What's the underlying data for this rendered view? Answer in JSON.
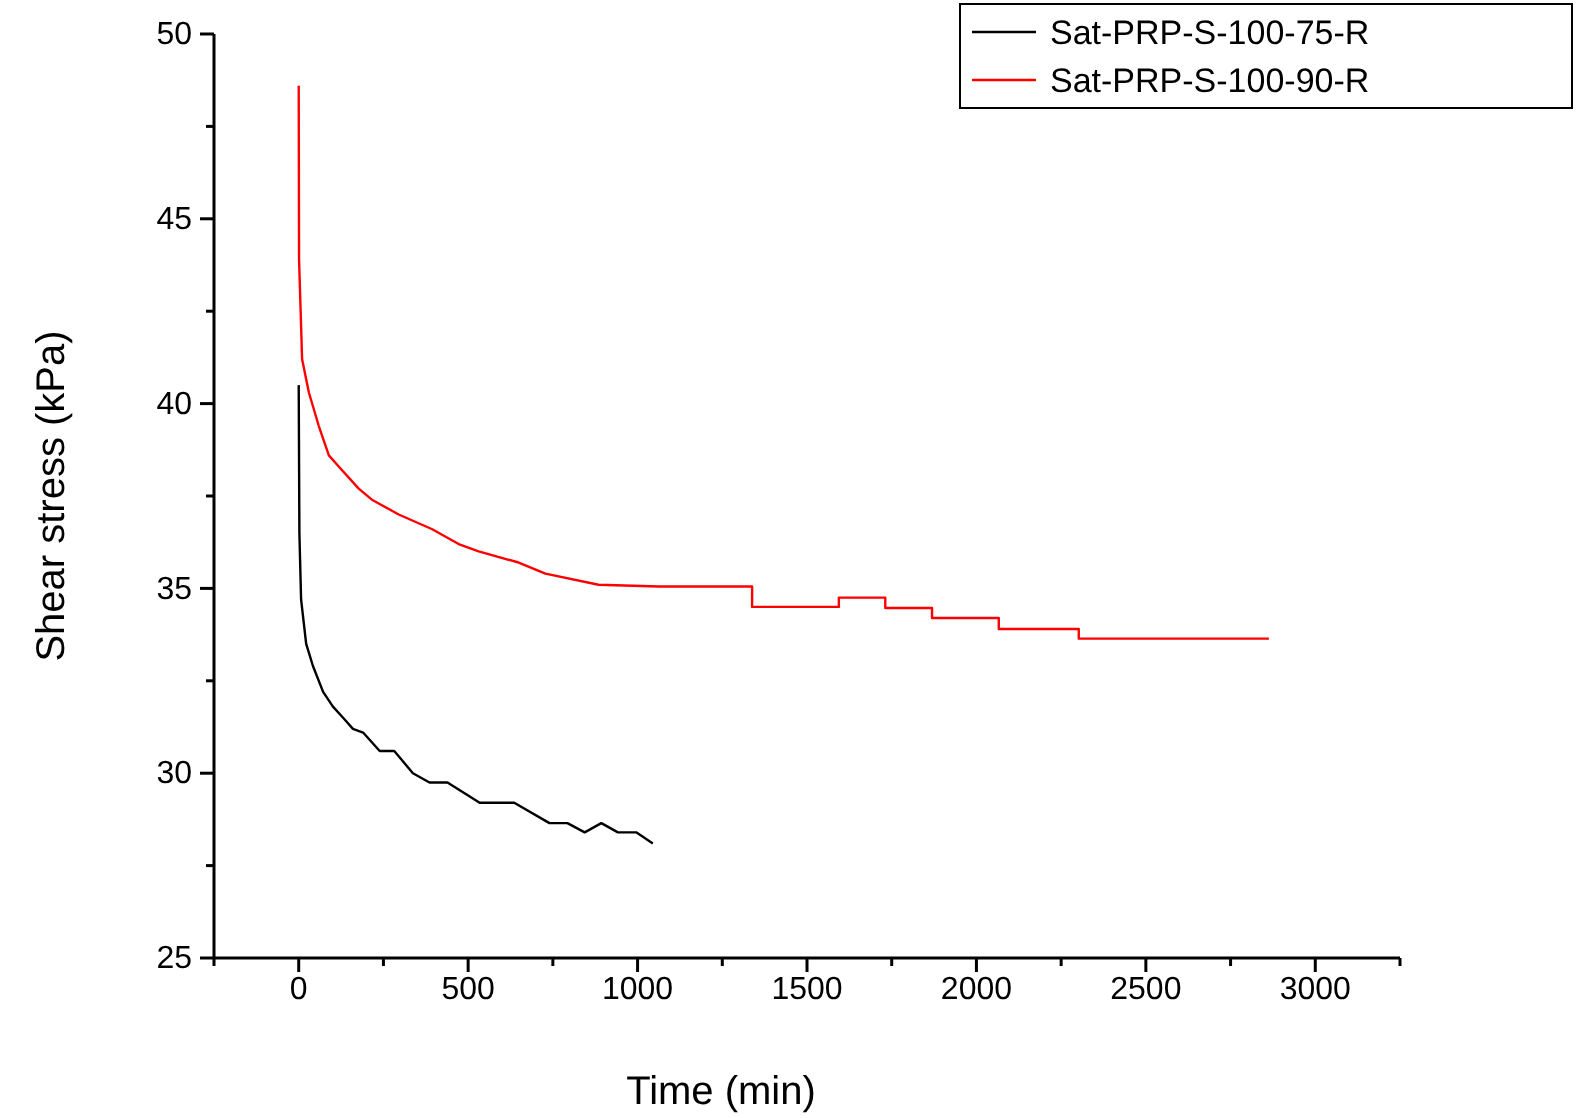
{
  "chart_data": {
    "type": "line",
    "xlabel": "Time (min)",
    "ylabel": "Shear stress (kPa)",
    "xlim": [
      -250,
      3250
    ],
    "xticks": [
      {
        "value": -250,
        "label": null
      },
      0,
      {
        "value": 250,
        "label": null
      },
      500,
      {
        "value": 750,
        "label": null
      },
      1000,
      {
        "value": 1250,
        "label": null
      },
      1500,
      {
        "value": 1750,
        "label": null
      },
      2000,
      {
        "value": 2250,
        "label": null
      },
      2500,
      {
        "value": 2750,
        "label": null
      },
      3000,
      {
        "value": 3250,
        "label": null
      }
    ],
    "ylim": [
      25,
      50
    ],
    "yticks": [
      25,
      {
        "value": 27.5,
        "label": null
      },
      30,
      {
        "value": 32.5,
        "label": null
      },
      35,
      {
        "value": 37.5,
        "label": null
      },
      40,
      {
        "value": 42.5,
        "label": null
      },
      45,
      {
        "value": 47.5,
        "label": null
      },
      50
    ],
    "legend": "top right",
    "grid": false,
    "series": [
      {
        "name": "Sat-PRP-S-100-75-R",
        "color": "#000000",
        "x": [
          0,
          2,
          7,
          22,
          42,
          72,
          101,
          131,
          160,
          190,
          239,
          282,
          337,
          386,
          439,
          534,
          636,
          740,
          793,
          844,
          893,
          942,
          996,
          1045
        ],
        "values": [
          40.5,
          36.5,
          34.7,
          33.5,
          32.9,
          32.2,
          31.8,
          31.5,
          31.2,
          31.1,
          30.6,
          30.6,
          30.0,
          29.75,
          29.75,
          29.2,
          29.2,
          28.65,
          28.65,
          28.4,
          28.65,
          28.4,
          28.4,
          28.1
        ]
      },
      {
        "name": "Sat-PRP-S-100-90-R",
        "color": "#ff0000",
        "x": [
          0,
          1,
          10,
          30,
          59,
          89,
          118,
          177,
          216,
          295,
          394,
          472,
          531,
          649,
          728,
          885,
          1062,
          1338,
          1338,
          1594,
          1594,
          1731,
          1731,
          1869,
          1869,
          2066,
          2066,
          2302,
          2302,
          2863
        ],
        "values": [
          48.6,
          43.9,
          41.2,
          40.3,
          39.4,
          38.6,
          38.3,
          37.7,
          37.4,
          37.0,
          36.6,
          36.2,
          36.0,
          35.7,
          35.4,
          35.1,
          35.05,
          35.05,
          34.5,
          34.5,
          34.75,
          34.75,
          34.47,
          34.47,
          34.2,
          34.2,
          33.9,
          33.9,
          33.64,
          33.64
        ]
      }
    ]
  }
}
